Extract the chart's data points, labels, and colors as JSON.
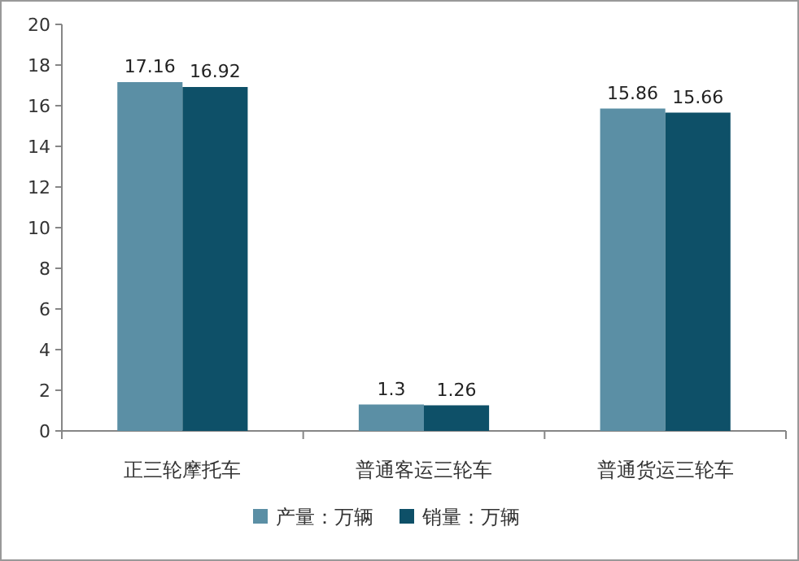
{
  "chart_data": {
    "type": "bar",
    "categories": [
      "正三轮摩托车",
      "普通客运三轮车",
      "普通货运三轮车"
    ],
    "series": [
      {
        "name": "产量：万辆",
        "color": "#5b8fa5",
        "values": [
          17.16,
          1.3,
          15.86
        ]
      },
      {
        "name": "销量：万辆",
        "color": "#0e5068",
        "values": [
          16.92,
          1.26,
          15.66
        ]
      }
    ],
    "ylim": [
      0,
      20
    ],
    "yticks": [
      0,
      2,
      4,
      6,
      8,
      10,
      12,
      14,
      16,
      18,
      20
    ],
    "data_labels": true,
    "legend": "bottom",
    "grid": false
  }
}
